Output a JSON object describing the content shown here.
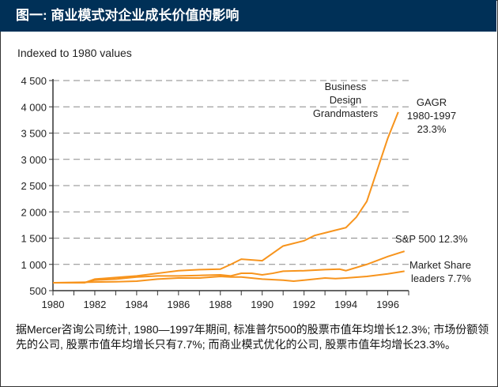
{
  "header": {
    "title": "图一: 商业模式对企业成长价值的影响"
  },
  "caption": "据Mercer咨询公司统计, 1980—1997年期间, 标准普尔500的股票市值年均增长12.3%; 市场份额领先的公司, 股票市值年均增长只有7.7%; 而商业模式优化的公司, 股票市值年均增长23.3%。",
  "colors": {
    "header": "#003057",
    "line": "#f7941d",
    "grid": "#888888"
  },
  "chart_data": {
    "type": "line",
    "ylabel": "Indexed to 1980 values",
    "xlim": [
      1980,
      1997
    ],
    "ylim": [
      500,
      4500
    ],
    "grid": true,
    "x_ticks": [
      "1980",
      "1982",
      "1984",
      "1986",
      "1988",
      "1990",
      "1992",
      "1994",
      "1996"
    ],
    "y_ticks": [
      "500",
      "1 000",
      "1 500",
      "2 000",
      "2 500",
      "3 000",
      "3 500",
      "4 000",
      "4 500"
    ],
    "series": [
      {
        "labels": [
          "Business",
          "Design",
          "Grandmasters"
        ],
        "annotation": [
          "GAGR",
          "1980-1997",
          "23.3%"
        ],
        "x": [
          1980,
          1981.5,
          1982,
          1983,
          1984,
          1985,
          1986,
          1987,
          1988,
          1988.5,
          1989,
          1990,
          1991,
          1992,
          1992.5,
          1993,
          1993.5,
          1994,
          1994.5,
          1995,
          1995.5,
          1996,
          1996.5
        ],
        "y": [
          650,
          650,
          720,
          750,
          780,
          830,
          880,
          900,
          910,
          1000,
          1100,
          1070,
          1350,
          1450,
          1550,
          1600,
          1650,
          1700,
          1900,
          2200,
          2800,
          3400,
          3900
        ]
      },
      {
        "labels": [
          "S&P 500 12.3%"
        ],
        "x": [
          1980,
          1981.5,
          1982,
          1983,
          1984,
          1985,
          1986,
          1987,
          1988,
          1988.5,
          1989,
          1989.5,
          1990,
          1990.5,
          1991,
          1992,
          1993,
          1993.7,
          1994,
          1995,
          1996,
          1996.8
        ],
        "y": [
          650,
          650,
          700,
          720,
          760,
          780,
          780,
          790,
          800,
          780,
          830,
          830,
          800,
          830,
          870,
          880,
          900,
          910,
          880,
          1000,
          1150,
          1250
        ]
      },
      {
        "labels": [
          "Market Share",
          "leaders 7.7%"
        ],
        "x": [
          1980,
          1983,
          1984,
          1985,
          1986,
          1987,
          1988,
          1988.5,
          1989,
          1990,
          1991,
          1991.5,
          1992,
          1993,
          1993.5,
          1994,
          1995,
          1996,
          1996.8
        ],
        "y": [
          650,
          670,
          680,
          720,
          740,
          740,
          770,
          760,
          760,
          720,
          700,
          680,
          700,
          740,
          730,
          740,
          770,
          820,
          870
        ]
      }
    ]
  }
}
